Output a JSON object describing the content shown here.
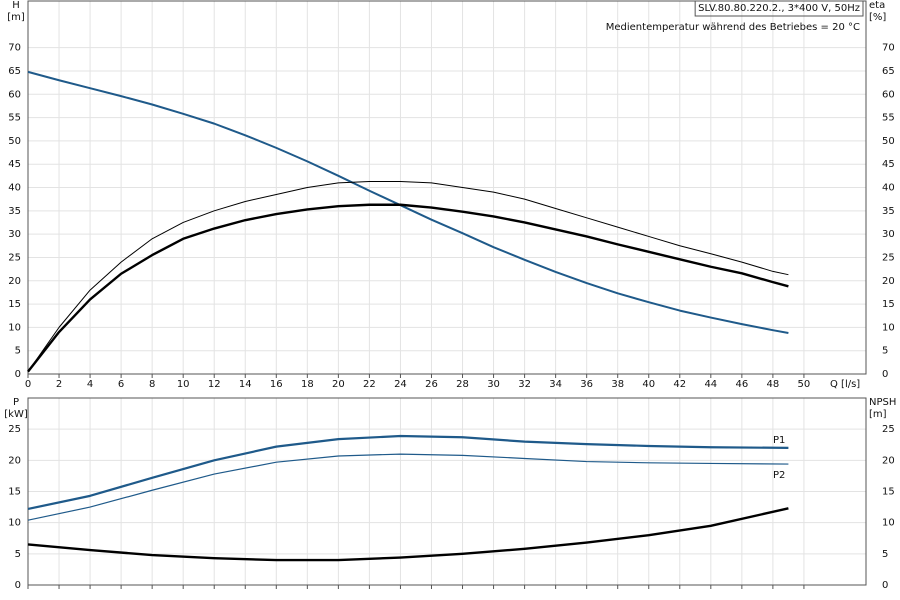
{
  "chart_data": [
    {
      "type": "line",
      "ylabel": "H",
      "yunit": "[m]",
      "y2label": "eta",
      "y2unit": "[%]",
      "xlabel": "Q [l/s]",
      "annotations": [
        "SLV.80.80.220.2., 3*400 V, 50Hz",
        "Medientemperatur während des Betriebes = 20 °C"
      ],
      "x": [
        0,
        2,
        4,
        6,
        8,
        10,
        12,
        14,
        16,
        18,
        20,
        22,
        24,
        26,
        28,
        30,
        32,
        34,
        36,
        38,
        40,
        42,
        44,
        46,
        48,
        49
      ],
      "series": [
        {
          "color": "#1f5a8a",
          "linewidth": 2,
          "values": [
            64.8,
            63,
            61.3,
            59.6,
            57.8,
            55.8,
            53.7,
            51.2,
            48.5,
            45.6,
            42.5,
            39.3,
            36.2,
            33.1,
            30.2,
            27.2,
            24.5,
            21.9,
            19.5,
            17.3,
            15.4,
            13.6,
            12.1,
            10.7,
            9.4,
            8.8
          ]
        },
        {
          "color": "#000000",
          "linewidth": 1,
          "axis": "y2",
          "values": [
            0.5,
            10,
            18,
            24,
            29,
            32.5,
            35,
            37,
            38.5,
            40,
            41,
            41.3,
            41.3,
            41,
            40,
            39,
            37.5,
            35.5,
            33.5,
            31.5,
            29.5,
            27.5,
            25.8,
            24,
            22,
            21.3
          ]
        },
        {
          "color": "#000000",
          "linewidth": 2.4,
          "axis": "y2",
          "values": [
            0.5,
            9,
            16,
            21.5,
            25.5,
            29,
            31.2,
            33,
            34.3,
            35.3,
            36,
            36.3,
            36.3,
            35.7,
            34.8,
            33.8,
            32.5,
            31,
            29.5,
            27.8,
            26.2,
            24.6,
            23,
            21.6,
            19.7,
            18.8
          ]
        }
      ],
      "xlim": [
        0,
        54
      ],
      "xticks": [
        0,
        2,
        4,
        6,
        8,
        10,
        12,
        14,
        16,
        18,
        20,
        22,
        24,
        26,
        28,
        30,
        32,
        34,
        36,
        38,
        40,
        42,
        44,
        46,
        48,
        50
      ],
      "ylim": [
        0,
        80
      ],
      "yticks": [
        0,
        5,
        10,
        15,
        20,
        25,
        30,
        35,
        40,
        45,
        50,
        55,
        60,
        65,
        70
      ],
      "y2lim": [
        0,
        80
      ],
      "y2ticks": [
        0,
        5,
        10,
        15,
        20,
        25,
        30,
        35,
        40,
        45,
        50,
        55,
        60,
        65,
        70
      ],
      "grid": true
    },
    {
      "type": "line",
      "ylabel": "P",
      "yunit": "[kW]",
      "y2label": "NPSH",
      "y2unit": "[m]",
      "x": [
        0,
        4,
        8,
        12,
        16,
        20,
        24,
        28,
        32,
        36,
        40,
        44,
        49
      ],
      "series": [
        {
          "name": "P1",
          "color": "#1f5a8a",
          "linewidth": 2.2,
          "values": [
            12.2,
            14.3,
            17.2,
            20,
            22.2,
            23.4,
            23.9,
            23.7,
            23,
            22.6,
            22.3,
            22.1,
            22
          ]
        },
        {
          "name": "P2",
          "color": "#1f5a8a",
          "linewidth": 1.2,
          "values": [
            10.4,
            12.5,
            15.2,
            17.8,
            19.7,
            20.7,
            21,
            20.8,
            20.3,
            19.8,
            19.6,
            19.5,
            19.4
          ]
        },
        {
          "color": "#000000",
          "linewidth": 2.4,
          "axis": "y2",
          "values": [
            6.5,
            5.6,
            4.8,
            4.3,
            4.0,
            4.0,
            4.4,
            5,
            5.8,
            6.8,
            8,
            9.5,
            12.3
          ]
        }
      ],
      "xlim": [
        0,
        54
      ],
      "xticks": [
        0,
        2,
        4,
        6,
        8,
        10,
        12,
        14,
        16,
        18,
        20,
        22,
        24,
        26,
        28,
        30,
        32,
        34,
        36,
        38,
        40,
        42,
        44,
        46,
        48,
        50
      ],
      "ylim": [
        0,
        30
      ],
      "yticks": [
        0,
        5,
        10,
        15,
        20,
        25
      ],
      "y2lim": [
        0,
        30
      ],
      "y2ticks": [
        0,
        5,
        10,
        15,
        20,
        25
      ],
      "grid": true
    }
  ]
}
